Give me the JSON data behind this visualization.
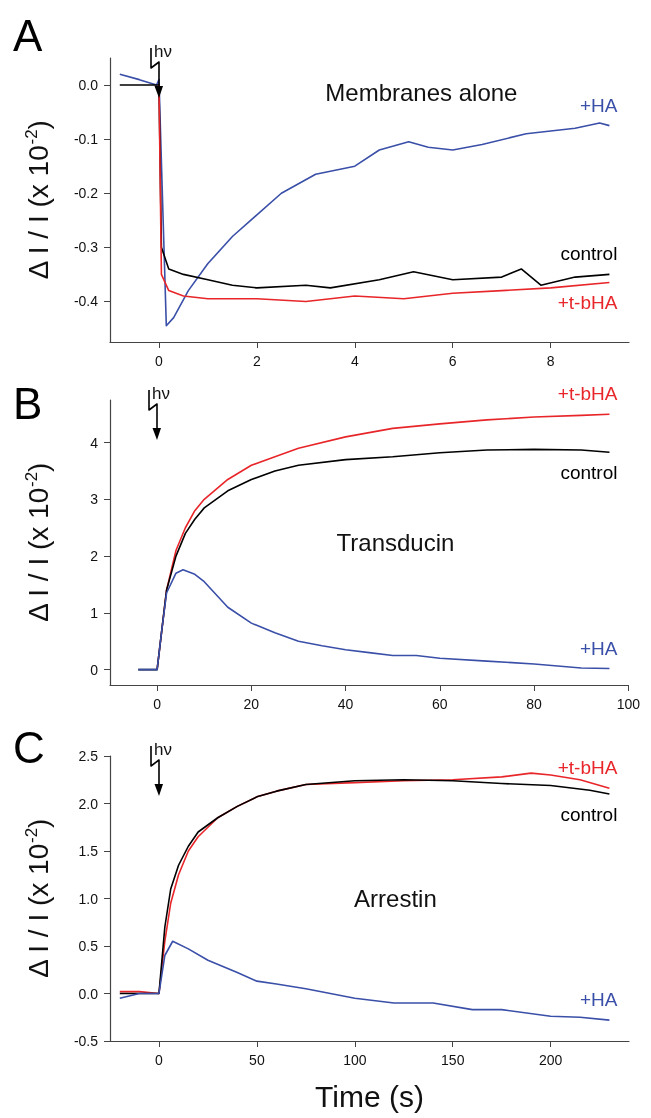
{
  "chart_data": [
    {
      "type": "line",
      "title": "A",
      "ylabel": "Δ I / I (x 10$^{-2}$)",
      "marker": "none",
      "annotations": [
        "Membranes alone"
      ],
      "ref_lines": [
        {
          "axis": "x",
          "value": 0,
          "label": "hν"
        }
      ],
      "xlim": [
        -1,
        9.6
      ],
      "xticks": [
        0,
        2,
        4,
        6,
        8
      ],
      "ylim": [
        -0.475,
        0.05
      ],
      "yticks": [
        {
          "value": 0,
          "label": "0.0"
        },
        -0.1,
        -0.2,
        -0.3,
        -0.4
      ],
      "series": [
        {
          "name": "+HA",
          "color": "#3a4fa8",
          "x": [
            -0.8,
            -0.4,
            -0.05,
            0,
            0.15,
            0.3,
            0.6,
            1,
            1.5,
            2,
            2.5,
            3.2,
            4,
            4.5,
            5.1,
            5.5,
            6,
            6.6,
            7.5,
            8.5,
            9,
            9.2
          ],
          "values": [
            0.02,
            0.01,
            0.0,
            0.01,
            -0.445,
            -0.43,
            -0.38,
            -0.33,
            -0.28,
            -0.24,
            -0.2,
            -0.165,
            -0.15,
            -0.12,
            -0.105,
            -0.115,
            -0.12,
            -0.11,
            -0.09,
            -0.08,
            -0.07,
            -0.075
          ]
        },
        {
          "name": "control",
          "color": "#000000",
          "x": [
            -0.8,
            -0.4,
            0,
            0.05,
            0.2,
            0.5,
            1,
            1.5,
            2,
            3,
            3.5,
            4.5,
            5.2,
            6,
            7,
            7.4,
            7.8,
            8.5,
            9.2
          ],
          "values": [
            0.0,
            0.0,
            0.0,
            -0.3,
            -0.34,
            -0.35,
            -0.36,
            -0.37,
            -0.375,
            -0.37,
            -0.375,
            -0.36,
            -0.345,
            -0.36,
            -0.355,
            -0.34,
            -0.37,
            -0.355,
            -0.35
          ]
        },
        {
          "name": "+t-bHA",
          "color": "#e8262a",
          "x": [
            0,
            0.05,
            0.2,
            0.5,
            1,
            2,
            3,
            4,
            5,
            6,
            7,
            8,
            9.2
          ],
          "values": [
            0.0,
            -0.35,
            -0.38,
            -0.39,
            -0.395,
            -0.395,
            -0.4,
            -0.39,
            -0.395,
            -0.385,
            -0.38,
            -0.375,
            -0.365
          ]
        }
      ]
    },
    {
      "type": "line",
      "title": "B",
      "ylabel": "Δ I / I (x 10$^{-2}$)",
      "marker": "none",
      "annotations": [
        "Transducin"
      ],
      "ref_lines": [
        {
          "axis": "x",
          "value": 0,
          "label": "hν"
        }
      ],
      "xlim": [
        -10,
        100
      ],
      "xticks": [
        0,
        20,
        40,
        60,
        80,
        100
      ],
      "ylim": [
        -0.27,
        4.75
      ],
      "yticks": [
        0,
        1,
        2,
        3,
        4
      ],
      "series": [
        {
          "name": "+t-bHA",
          "color": "#e8262a",
          "x": [
            0,
            1,
            2,
            4,
            6,
            8,
            10,
            15,
            20,
            25,
            30,
            40,
            50,
            60,
            70,
            80,
            90,
            96
          ],
          "values": [
            0,
            0.7,
            1.4,
            2.1,
            2.5,
            2.8,
            3.0,
            3.35,
            3.6,
            3.75,
            3.9,
            4.1,
            4.25,
            4.33,
            4.4,
            4.45,
            4.48,
            4.5
          ]
        },
        {
          "name": "control",
          "color": "#000000",
          "x": [
            -4,
            -2,
            0,
            1,
            2,
            4,
            6,
            8,
            10,
            15,
            20,
            25,
            30,
            40,
            50,
            60,
            70,
            80,
            90,
            96
          ],
          "values": [
            0,
            0,
            0,
            0.7,
            1.4,
            2.0,
            2.4,
            2.65,
            2.85,
            3.15,
            3.35,
            3.5,
            3.6,
            3.7,
            3.75,
            3.82,
            3.87,
            3.88,
            3.87,
            3.83
          ]
        },
        {
          "name": "+HA",
          "color": "#3a4fa8",
          "x": [
            -4,
            -2,
            0,
            1,
            2,
            4,
            5.5,
            8,
            10,
            15,
            20,
            25,
            30,
            35,
            40,
            45,
            50,
            55,
            60,
            70,
            80,
            90,
            96
          ],
          "values": [
            0,
            0,
            0,
            0.7,
            1.35,
            1.7,
            1.76,
            1.68,
            1.55,
            1.1,
            0.82,
            0.65,
            0.5,
            0.42,
            0.35,
            0.3,
            0.25,
            0.25,
            0.2,
            0.15,
            0.1,
            0.03,
            0.02
          ]
        }
      ]
    },
    {
      "type": "line",
      "title": "C",
      "xlabel": "Time (s)",
      "ylabel": "Δ I / I (x 10$^{-2}$)",
      "marker": "none",
      "annotations": [
        "Arrestin"
      ],
      "ref_lines": [
        {
          "axis": "x",
          "value": 0,
          "label": "hν"
        }
      ],
      "xlim": [
        -25,
        240
      ],
      "xticks": [
        0,
        50,
        100,
        150,
        200
      ],
      "ylim": [
        -0.5,
        2.5
      ],
      "yticks": [
        -0.5,
        {
          "value": 0,
          "label": "0.0"
        },
        0.5,
        {
          "value": 1,
          "label": "1.0"
        },
        1.5,
        {
          "value": 2,
          "label": "2.0"
        },
        2.5
      ],
      "series": [
        {
          "name": "+t-bHA",
          "color": "#e8262a",
          "x": [
            -20,
            -10,
            0,
            3,
            6,
            10,
            15,
            20,
            30,
            40,
            50,
            60,
            75,
            100,
            125,
            150,
            175,
            190,
            200,
            215,
            230
          ],
          "values": [
            0.02,
            0.02,
            0,
            0.55,
            0.95,
            1.25,
            1.5,
            1.65,
            1.85,
            1.97,
            2.07,
            2.13,
            2.2,
            2.22,
            2.24,
            2.25,
            2.28,
            2.32,
            2.3,
            2.25,
            2.16
          ]
        },
        {
          "name": "control",
          "color": "#000000",
          "x": [
            -20,
            -10,
            0,
            3,
            6,
            10,
            15,
            20,
            30,
            40,
            50,
            60,
            75,
            100,
            125,
            150,
            175,
            200,
            220,
            230
          ],
          "values": [
            0,
            0,
            0,
            0.7,
            1.1,
            1.35,
            1.55,
            1.7,
            1.85,
            1.97,
            2.07,
            2.13,
            2.2,
            2.24,
            2.25,
            2.24,
            2.21,
            2.19,
            2.14,
            2.1
          ]
        },
        {
          "name": "+HA",
          "color": "#3a4fa8",
          "x": [
            -20,
            -10,
            0,
            3,
            7,
            15,
            25,
            40,
            50,
            60,
            75,
            100,
            120,
            140,
            160,
            175,
            200,
            215,
            230
          ],
          "values": [
            -0.05,
            0.0,
            0.0,
            0.4,
            0.55,
            0.47,
            0.35,
            0.22,
            0.13,
            0.1,
            0.05,
            -0.05,
            -0.1,
            -0.1,
            -0.17,
            -0.17,
            -0.24,
            -0.25,
            -0.28
          ]
        }
      ]
    }
  ]
}
